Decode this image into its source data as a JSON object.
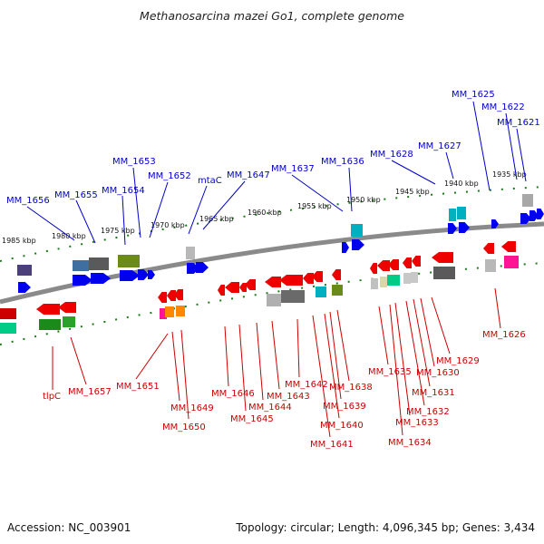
{
  "title": "Methanosarcina mazei Go1, complete genome",
  "accession_label": "Accession: NC_003901",
  "topology_label": "Topology: circular; Length: 4,096,345 bp; Genes: 3,434",
  "colors": {
    "label_top": "#0000cc",
    "label_bottom": "#cc0000",
    "axis": "#777777",
    "tick": "#1a7a1a"
  },
  "scale_labels": [
    "1985 kbp",
    "1980 kbp",
    "1975 kbp",
    "1970 kbp",
    "1965 kbp",
    "1960 kbp",
    "1955 kbp",
    "1950 kbp",
    "1945 kbp",
    "1940 kbp",
    "1935 kbp"
  ],
  "genes_top": [
    "MM_1656",
    "MM_1655",
    "MM_1654",
    "MM_1653",
    "MM_1652",
    "mtaC",
    "MM_1647",
    "MM_1637",
    "MM_1636",
    "MM_1628",
    "MM_1627",
    "MM_1625",
    "MM_1622",
    "MM_1621"
  ],
  "genes_bottom": [
    "tlpC",
    "MM_1657",
    "MM_1651",
    "MM_1649",
    "MM_1650",
    "MM_1646",
    "MM_1645",
    "MM_1644",
    "MM_1643",
    "MM_1642",
    "MM_1641",
    "MM_1640",
    "MM_1639",
    "MM_1638",
    "MM_1635",
    "MM_1634",
    "MM_1633",
    "MM_1632",
    "MM_1631",
    "MM_1630",
    "MM_1629",
    "MM_1626"
  ]
}
